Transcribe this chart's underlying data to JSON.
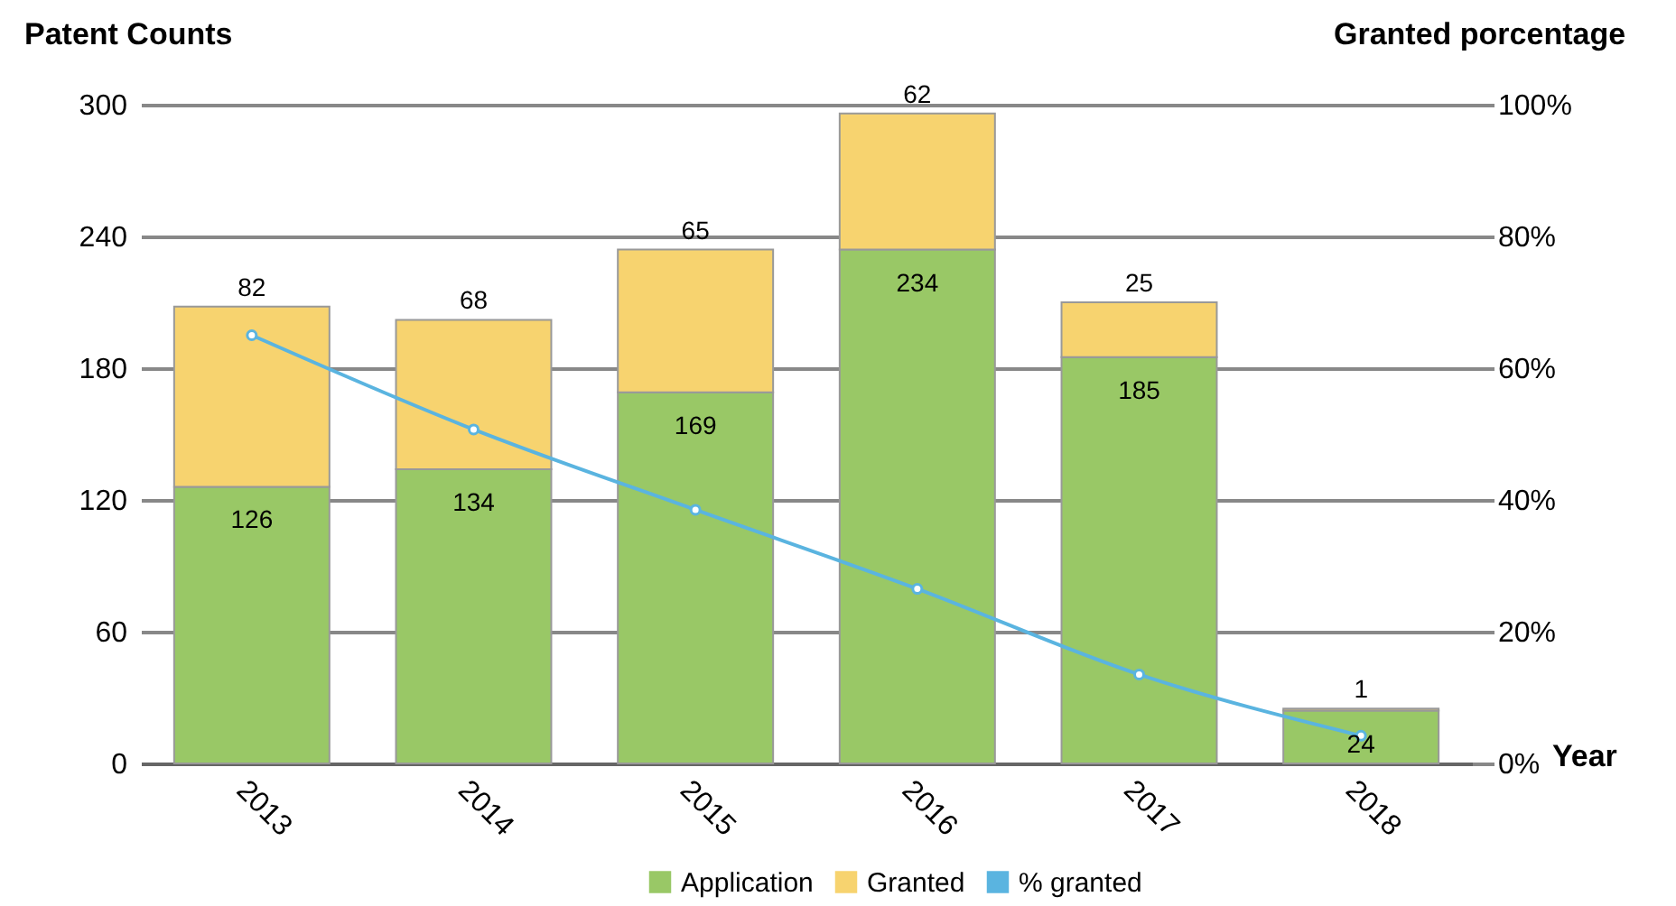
{
  "chart_data": {
    "type": "bar",
    "ylabel": "Patent Counts",
    "y2label": "Granted porcentage",
    "xlabel": "Year",
    "categories": [
      "2013",
      "2014",
      "2015",
      "2016",
      "2017",
      "2018"
    ],
    "series": [
      {
        "name": "Application",
        "color": "#99c866",
        "values": [
          126,
          134,
          169,
          234,
          185,
          24
        ],
        "value_labels": [
          "126",
          "134",
          "169",
          "234",
          "185",
          "24"
        ]
      },
      {
        "name": "Granted",
        "color": "#f7d36f",
        "values": [
          82,
          68,
          65,
          62,
          25,
          1
        ],
        "value_labels": [
          "82",
          "68",
          "65",
          "62",
          "25",
          "1"
        ]
      },
      {
        "name": "% granted",
        "color": "#5ab4e0",
        "type": "line",
        "axis": "y2",
        "marker": "circle",
        "values": [
          65,
          50.7,
          38.5,
          26.5,
          13.5,
          4.2
        ]
      }
    ],
    "stacked": true,
    "ylim": [
      0,
      300
    ],
    "yticks": [
      0,
      60,
      120,
      180,
      240,
      300
    ],
    "y2lim": [
      0,
      100
    ],
    "y2ticks": [
      {
        "value": 0,
        "label": "0%"
      },
      {
        "value": 20,
        "label": "20%"
      },
      {
        "value": 40,
        "label": "40%"
      },
      {
        "value": 60,
        "label": "60%"
      },
      {
        "value": 80,
        "label": "80%"
      },
      {
        "value": 100,
        "label": "100%"
      }
    ],
    "grid": "y",
    "legend": "bottom"
  }
}
